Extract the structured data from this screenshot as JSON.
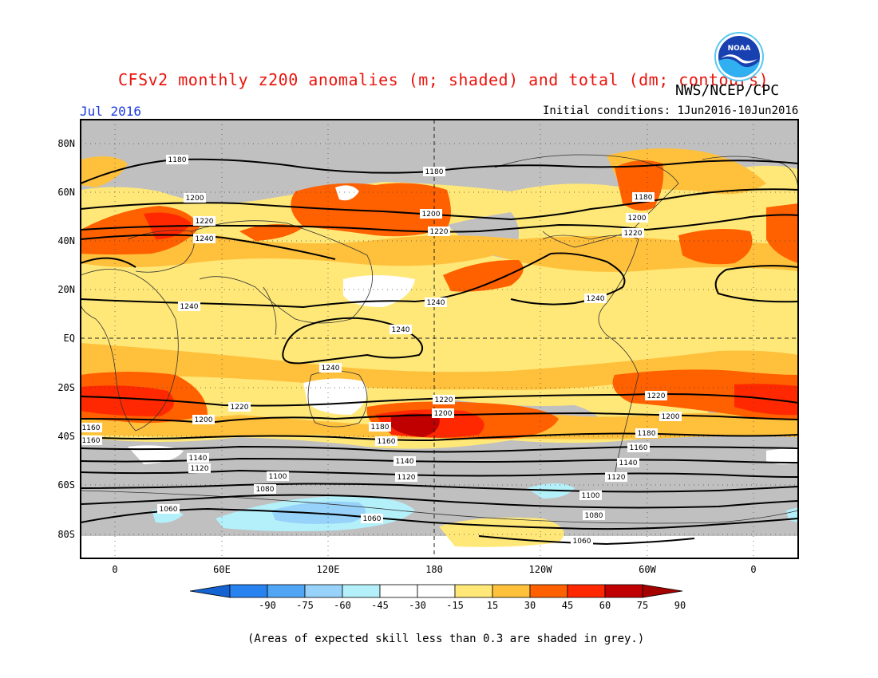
{
  "header": {
    "title": "CFSv2 monthly z200 anomalies (m; shaded) and total (dm; contours)",
    "agency": "NWS/NCEP/CPC",
    "month": "Jul 2016",
    "initial_conditions": "Initial conditions: 1Jun2016-10Jun2016",
    "logo_text": "NOAA"
  },
  "axes": {
    "lat_labels": [
      "80N",
      "60N",
      "40N",
      "20N",
      "EQ",
      "20S",
      "40S",
      "60S",
      "80S"
    ],
    "lon_labels": [
      "0",
      "60E",
      "120E",
      "180",
      "120W",
      "60W",
      "0"
    ]
  },
  "colorbar": {
    "labels": [
      "-90",
      "-75",
      "-60",
      "-45",
      "-30",
      "-15",
      "15",
      "30",
      "45",
      "60",
      "75",
      "90"
    ],
    "colors": [
      "#1463d2",
      "#2882f0",
      "#50a5f5",
      "#96d2fa",
      "#b4f0fa",
      "#ffffff",
      "#ffffff",
      "#ffe878",
      "#ffc03c",
      "#ff6000",
      "#ff2800",
      "#c00000",
      "#a50000"
    ]
  },
  "contour_labels": [
    "1180",
    "1200",
    "1220",
    "1240",
    "1240",
    "1240",
    "1240",
    "1240",
    "1180",
    "1200",
    "1220",
    "1200",
    "1180",
    "1200",
    "1220",
    "1240",
    "1220",
    "1200",
    "1160",
    "1160",
    "1180",
    "1160",
    "1220",
    "1200",
    "1140",
    "1120",
    "1100",
    "1080",
    "1060",
    "1060",
    "1140",
    "1120",
    "1200",
    "1180",
    "1160",
    "1140",
    "1120",
    "1100",
    "1080",
    "1060"
  ],
  "footnote": "(Areas of expected skill less than 0.3 are shaded in grey.)",
  "colors": {
    "grey_mask": "#c0c0c0",
    "pos_light": "#ffe878",
    "pos_med": "#ffc03c",
    "pos_orange": "#ff6000",
    "pos_red": "#ff2800",
    "pos_dark": "#c00000",
    "neg_light": "#b4f0fa",
    "neg_med": "#96d2fa",
    "title_red": "#e8140c",
    "month_blue": "#1a3ae0"
  }
}
